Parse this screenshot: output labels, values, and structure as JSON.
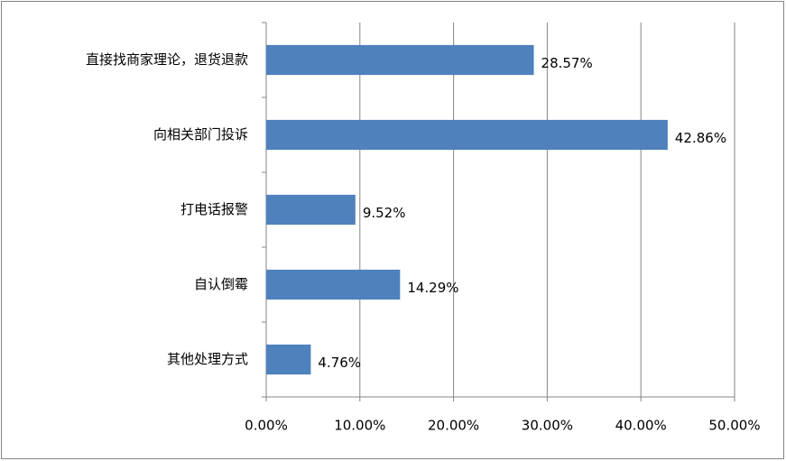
{
  "chart_data": {
    "type": "bar",
    "orientation": "horizontal",
    "categories": [
      "直接找商家理论，退货退款",
      "向相关部门投诉",
      "打电话报警",
      "自认倒霉",
      "其他处理方式"
    ],
    "values": [
      28.57,
      42.86,
      9.52,
      14.29,
      4.76
    ],
    "value_labels": [
      "28.57%",
      "42.86%",
      "9.52%",
      "14.29%",
      "4.76%"
    ],
    "color": "#4f81bd",
    "xlim": [
      0,
      50
    ],
    "xticks": [
      {
        "value": 0,
        "label": "0.00%"
      },
      {
        "value": 10,
        "label": "10.00%"
      },
      {
        "value": 20,
        "label": "20.00%"
      },
      {
        "value": 30,
        "label": "30.00%"
      },
      {
        "value": 40,
        "label": "40.00%"
      },
      {
        "value": 50,
        "label": "50.00%"
      }
    ],
    "grid": true
  }
}
